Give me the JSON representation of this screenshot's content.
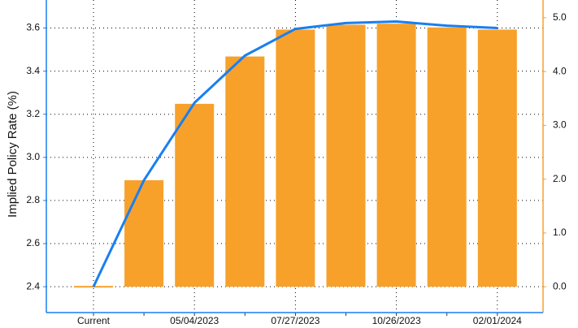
{
  "chart_data": {
    "type": "bar-line",
    "y_label": "Implied Policy Rate (%)",
    "categories": [
      "Current",
      null,
      "05/04/2023",
      null,
      "07/27/2023",
      null,
      "10/26/2023",
      null,
      "02/01/2024"
    ],
    "series": [
      {
        "type": "bar",
        "axis": "y2",
        "color": "#f7a12b",
        "values": [
          0,
          1.98,
          3.4,
          4.28,
          4.78,
          4.87,
          4.89,
          4.82,
          4.78
        ]
      },
      {
        "type": "line",
        "axis": "y",
        "color": "#1a7ff0",
        "values": [
          2.4,
          2.894,
          3.253,
          3.472,
          3.596,
          3.623,
          3.63,
          3.611,
          3.6
        ]
      }
    ],
    "ylim": [
      2.28,
      3.73
    ],
    "yticks": [
      {
        "value": 2.4,
        "label": "2.4"
      },
      {
        "value": 2.6,
        "label": "2.6"
      },
      {
        "value": 2.8,
        "label": "2.8"
      },
      {
        "value": 3.0,
        "label": "3.0"
      },
      {
        "value": 3.2,
        "label": "3.2"
      },
      {
        "value": 3.4,
        "label": "3.4"
      },
      {
        "value": 3.6,
        "label": "3.6"
      }
    ],
    "y2lim": [
      -0.48,
      5.33
    ],
    "y2ticks": [
      {
        "value": 0,
        "label": "0.0"
      },
      {
        "value": 1,
        "label": "1.0"
      },
      {
        "value": 2,
        "label": "2.0"
      },
      {
        "value": 3,
        "label": "3.0"
      },
      {
        "value": 4,
        "label": "4.0"
      },
      {
        "value": 5,
        "label": "5.0"
      }
    ],
    "grid": true
  }
}
